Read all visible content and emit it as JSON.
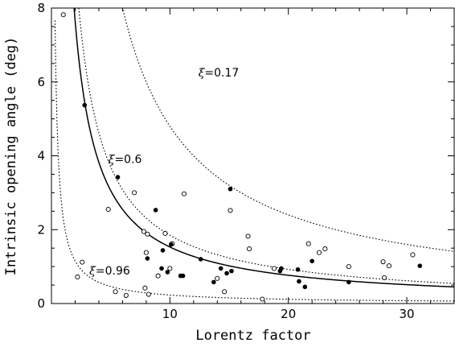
{
  "chart_data": {
    "type": "scatter",
    "xlabel": "Lorentz factor",
    "ylabel": "Intrinsic opening angle (deg)",
    "xlim": [
      0,
      34
    ],
    "ylim": [
      0,
      8
    ],
    "xticks": [
      0,
      10,
      20,
      30
    ],
    "yticks": [
      0,
      2,
      4,
      6,
      8
    ],
    "x_tick_labels": [
      "10",
      "20",
      "30"
    ],
    "y_tick_labels": [
      "0",
      "2",
      "4",
      "6",
      "8"
    ],
    "grid": false,
    "open_points": [
      [
        1.0,
        7.82
      ],
      [
        2.2,
        0.72
      ],
      [
        2.6,
        1.12
      ],
      [
        4.8,
        2.55
      ],
      [
        5.4,
        0.32
      ],
      [
        6.3,
        0.22
      ],
      [
        7.0,
        3.0
      ],
      [
        7.8,
        1.95
      ],
      [
        7.9,
        0.42
      ],
      [
        8.0,
        1.38
      ],
      [
        8.1,
        1.88
      ],
      [
        8.2,
        0.25
      ],
      [
        9.0,
        0.75
      ],
      [
        9.6,
        1.9
      ],
      [
        10.0,
        0.95
      ],
      [
        10.2,
        1.62
      ],
      [
        11.2,
        2.97
      ],
      [
        14.0,
        0.68
      ],
      [
        14.6,
        0.32
      ],
      [
        15.1,
        2.52
      ],
      [
        16.6,
        1.82
      ],
      [
        16.7,
        1.48
      ],
      [
        17.8,
        0.12
      ],
      [
        18.8,
        0.95
      ],
      [
        21.7,
        1.62
      ],
      [
        22.6,
        1.38
      ],
      [
        23.1,
        1.48
      ],
      [
        25.1,
        1.0
      ],
      [
        28.0,
        1.13
      ],
      [
        28.1,
        0.7
      ],
      [
        28.5,
        1.02
      ],
      [
        30.5,
        1.32
      ]
    ],
    "filled_points": [
      [
        2.8,
        5.37
      ],
      [
        5.6,
        3.42
      ],
      [
        8.1,
        1.22
      ],
      [
        8.8,
        2.53
      ],
      [
        9.3,
        0.95
      ],
      [
        9.4,
        1.44
      ],
      [
        9.8,
        0.85
      ],
      [
        10.1,
        1.6
      ],
      [
        10.9,
        0.75
      ],
      [
        11.1,
        0.75
      ],
      [
        12.6,
        1.2
      ],
      [
        13.7,
        0.58
      ],
      [
        14.3,
        0.95
      ],
      [
        14.8,
        0.82
      ],
      [
        15.1,
        3.1
      ],
      [
        15.2,
        0.88
      ],
      [
        19.3,
        0.88
      ],
      [
        19.4,
        0.95
      ],
      [
        20.8,
        0.92
      ],
      [
        20.9,
        0.6
      ],
      [
        21.4,
        0.45
      ],
      [
        22.0,
        1.15
      ],
      [
        25.1,
        0.58
      ],
      [
        31.1,
        1.02
      ]
    ],
    "curves": [
      {
        "label_symbol": "ξ",
        "label_text": "=0.17",
        "style": "dotted",
        "k": 48,
        "label_x": 12.4,
        "label_y": 6.15
      },
      {
        "label_symbol": "ξ",
        "label_text": "=0.6",
        "style": "dotted",
        "k": 18.5,
        "label_x": 4.8,
        "label_y": 3.8
      },
      {
        "label_symbol": "",
        "label_text": "",
        "style": "solid",
        "k": 15.3,
        "label_x": null,
        "label_y": null
      },
      {
        "label_symbol": "ξ",
        "label_text": "=0.96",
        "style": "dotted",
        "k": 2.3,
        "label_x": 3.2,
        "label_y": 0.78
      }
    ]
  }
}
